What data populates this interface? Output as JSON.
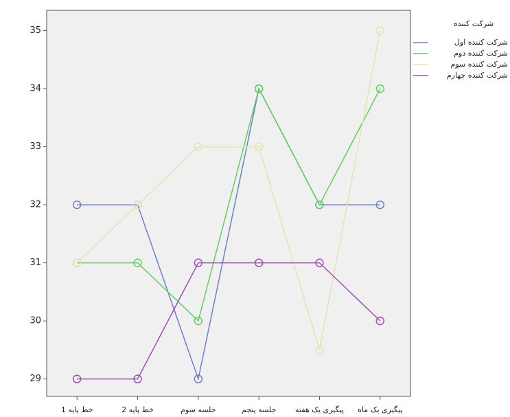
{
  "chart_data": {
    "type": "line",
    "categories": [
      "خط پایه 1",
      "خط پایه 2",
      "جلسه سوم",
      "جلسه پنجم",
      "پیگیری یک هفته",
      "پیگیری یک ماه"
    ],
    "legend_title": "شرکت کننده",
    "series": [
      {
        "name": "شرکت کننده اول",
        "color": "#6f7fd0",
        "values": [
          32,
          32,
          29,
          34,
          32,
          32
        ]
      },
      {
        "name": "شرکت کننده دوم",
        "color": "#5fcf5f",
        "values": [
          31,
          31,
          30,
          34,
          32,
          34
        ]
      },
      {
        "name": "شرکت کننده سوم",
        "color": "#e4e4ae",
        "values": [
          31,
          32,
          33,
          33,
          29.5,
          35
        ]
      },
      {
        "name": "شرکت کننده چهارم",
        "color": "#a24fb2",
        "values": [
          29,
          29,
          31,
          31,
          31,
          30
        ]
      }
    ],
    "ylim": [
      28.7,
      35.35
    ],
    "yticks": [
      29,
      30,
      31,
      32,
      33,
      34,
      35
    ],
    "legend": "right"
  }
}
